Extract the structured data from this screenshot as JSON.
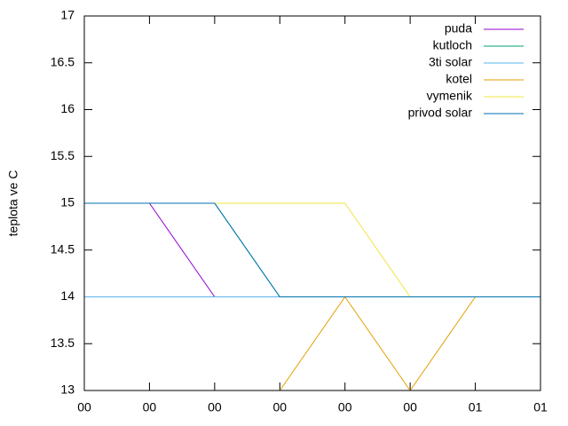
{
  "chart_data": {
    "type": "line",
    "y_label": "teplota ve C",
    "x": [
      0,
      1,
      2,
      3,
      4,
      5,
      6,
      7
    ],
    "series": [
      {
        "name": "puda",
        "color": "#9400d3",
        "values": [
          15,
          15,
          14,
          14,
          14,
          14,
          14,
          14
        ]
      },
      {
        "name": "kutloch",
        "color": "#009e73",
        "values": [
          15,
          15,
          15,
          14,
          14,
          14,
          14,
          14
        ]
      },
      {
        "name": "3ti solar",
        "color": "#56b4e9",
        "values": [
          14,
          14,
          14,
          14,
          14,
          14,
          14,
          14
        ]
      },
      {
        "name": "kotel",
        "color": "#e69f00",
        "values": [
          13,
          13,
          13,
          13,
          14,
          13,
          14,
          14
        ]
      },
      {
        "name": "vymenik",
        "color": "#f0e442",
        "values": [
          15,
          15,
          15,
          15,
          15,
          14,
          14,
          14
        ]
      },
      {
        "name": "privod solar",
        "color": "#0072b2",
        "values": [
          15,
          15,
          15,
          14,
          14,
          14,
          14,
          14
        ]
      }
    ],
    "xlim": [
      0,
      7
    ],
    "xticks": [
      {
        "value": 0,
        "label": "00"
      },
      {
        "value": 1,
        "label": "00"
      },
      {
        "value": 2,
        "label": "00"
      },
      {
        "value": 3,
        "label": "00"
      },
      {
        "value": 4,
        "label": "00"
      },
      {
        "value": 5,
        "label": "00"
      },
      {
        "value": 6,
        "label": "01"
      },
      {
        "value": 7,
        "label": "01"
      }
    ],
    "ylim": [
      13,
      17
    ],
    "yticks": [
      13,
      13.5,
      14,
      14.5,
      15,
      15.5,
      16,
      16.5,
      17
    ],
    "legend": "top-right",
    "grid": false
  }
}
